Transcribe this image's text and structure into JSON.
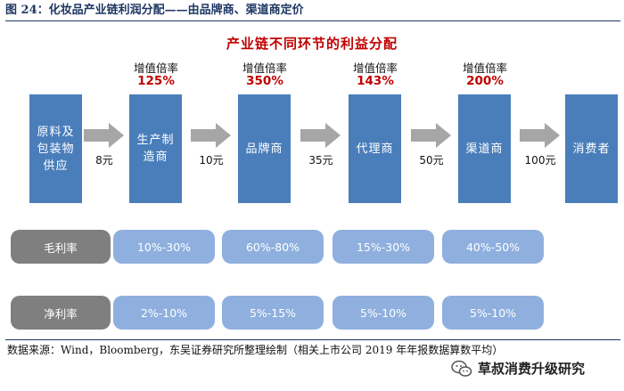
{
  "figure": {
    "title": "图 24：化妆品产业链利润分配——由品牌商、渠道商定价",
    "diagram_title": "产业链不同环节的利益分配"
  },
  "stages": [
    {
      "name": "原料及包装物供应"
    },
    {
      "name": "生产制造商",
      "markup_label": "增值倍率",
      "markup": "125%"
    },
    {
      "name": "品牌商",
      "markup_label": "增值倍率",
      "markup": "350%"
    },
    {
      "name": "代理商",
      "markup_label": "增值倍率",
      "markup": "143%"
    },
    {
      "name": "渠道商",
      "markup_label": "增值倍率",
      "markup": "200%"
    },
    {
      "name": "消费者"
    }
  ],
  "prices": [
    "8元",
    "10元",
    "35元",
    "50元",
    "100元"
  ],
  "rows": {
    "gross": {
      "label": "毛利率",
      "values": [
        "10%-30%",
        "60%-80%",
        "15%-30%",
        "40%-50%"
      ]
    },
    "net": {
      "label": "净利率",
      "values": [
        "2%-10%",
        "5%-15%",
        "5%-10%",
        "5%-10%"
      ]
    }
  },
  "colors": {
    "stage": "#4a7ebb",
    "pill": "#8fb0de",
    "row_label": "#7f7f7f",
    "accent": "#c00000",
    "arrow": "#a6a6a6"
  },
  "footer": {
    "source": "数据来源：Wind，Bloomberg，东吴证券研究所整理绘制（相关上市公司 2019 年年报数据算数平均）",
    "watermark": "草叔消费升级研究",
    "watermark_icon": "wechat-icon"
  }
}
